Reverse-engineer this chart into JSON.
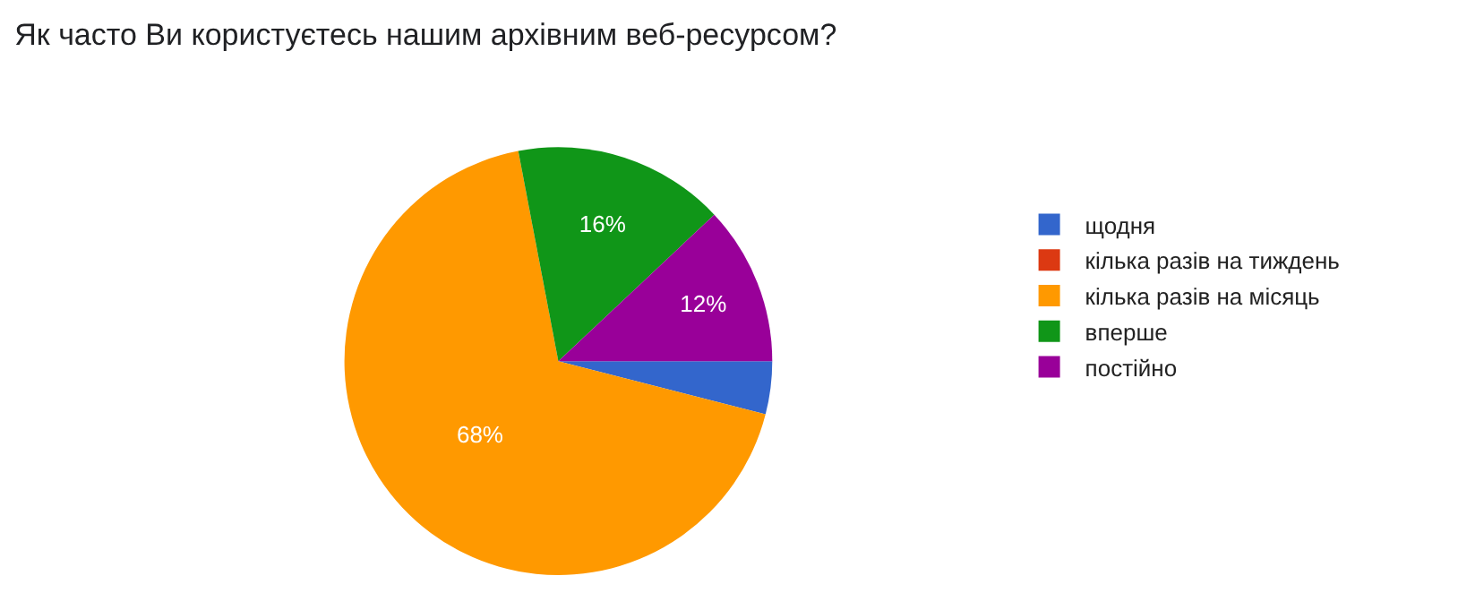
{
  "chart_data": {
    "type": "pie",
    "title": "Як часто Ви користуєтесь нашим архівним веб-ресурсом?",
    "categories": [
      "щодня",
      "кілька разів на тиждень",
      "кілька разів на місяць",
      "вперше",
      "постійно"
    ],
    "values": [
      4,
      0,
      68,
      16,
      12
    ],
    "colors": [
      "#3366cc",
      "#dc3912",
      "#ff9900",
      "#109618",
      "#990099"
    ],
    "value_labels": [
      null,
      null,
      "68%",
      "16%",
      "12%"
    ],
    "legend": "right"
  }
}
